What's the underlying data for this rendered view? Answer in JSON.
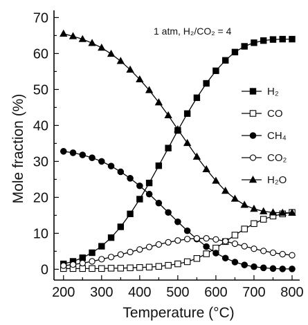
{
  "chart_data": {
    "type": "line",
    "xlabel": "Temperature (°C)",
    "ylabel": "Mole fraction (%)",
    "annotation": "1 atm, H₂/CO₂ = 4",
    "xlim": [
      175,
      820
    ],
    "ylim": [
      -3,
      72
    ],
    "xticks": [
      200,
      300,
      400,
      500,
      600,
      700,
      800
    ],
    "yticks": [
      0,
      10,
      20,
      30,
      40,
      50,
      60,
      70
    ],
    "x": [
      200,
      225,
      250,
      275,
      300,
      325,
      350,
      375,
      400,
      425,
      450,
      475,
      500,
      525,
      550,
      575,
      600,
      625,
      650,
      675,
      700,
      725,
      750,
      775,
      800
    ],
    "legend_position": "right",
    "series": [
      {
        "name": "H₂",
        "marker": "filled-square",
        "values": [
          1.5,
          2.2,
          3.2,
          4.6,
          6.4,
          8.8,
          11.8,
          15.4,
          19.5,
          24.0,
          28.8,
          33.7,
          38.6,
          43.3,
          47.7,
          51.7,
          55.2,
          58.1,
          60.4,
          62.0,
          63.0,
          63.6,
          63.9,
          64.0,
          64.0
        ]
      },
      {
        "name": "CO",
        "marker": "open-square",
        "values": [
          0.2,
          0.2,
          0.2,
          0.2,
          0.2,
          0.3,
          0.3,
          0.4,
          0.5,
          0.6,
          0.8,
          1.1,
          1.5,
          2.1,
          3.0,
          4.3,
          5.9,
          7.7,
          9.5,
          11.2,
          12.7,
          13.9,
          14.8,
          15.4,
          15.8
        ]
      },
      {
        "name": "CH₄",
        "marker": "filled-circle",
        "values": [
          32.8,
          32.4,
          31.8,
          31.0,
          30.0,
          28.7,
          27.1,
          25.3,
          23.2,
          20.9,
          18.4,
          15.8,
          13.2,
          10.7,
          8.4,
          6.3,
          4.5,
          3.1,
          2.0,
          1.2,
          0.7,
          0.4,
          0.2,
          0.1,
          0.1
        ]
      },
      {
        "name": "CO₂",
        "marker": "open-circle",
        "values": [
          1.0,
          1.3,
          1.7,
          2.2,
          2.8,
          3.4,
          4.1,
          4.8,
          5.5,
          6.2,
          6.9,
          7.5,
          8.0,
          8.4,
          8.6,
          8.6,
          8.3,
          7.8,
          7.1,
          6.4,
          5.7,
          5.1,
          4.6,
          4.2,
          3.9
        ]
      },
      {
        "name": "H₂O",
        "marker": "filled-triangle",
        "values": [
          65.5,
          64.8,
          64.0,
          62.9,
          61.6,
          59.9,
          57.9,
          55.5,
          52.8,
          49.8,
          46.4,
          42.8,
          38.9,
          35.1,
          31.3,
          27.8,
          24.6,
          21.8,
          19.6,
          17.9,
          16.8,
          16.1,
          15.8,
          15.7,
          15.7
        ]
      }
    ]
  }
}
